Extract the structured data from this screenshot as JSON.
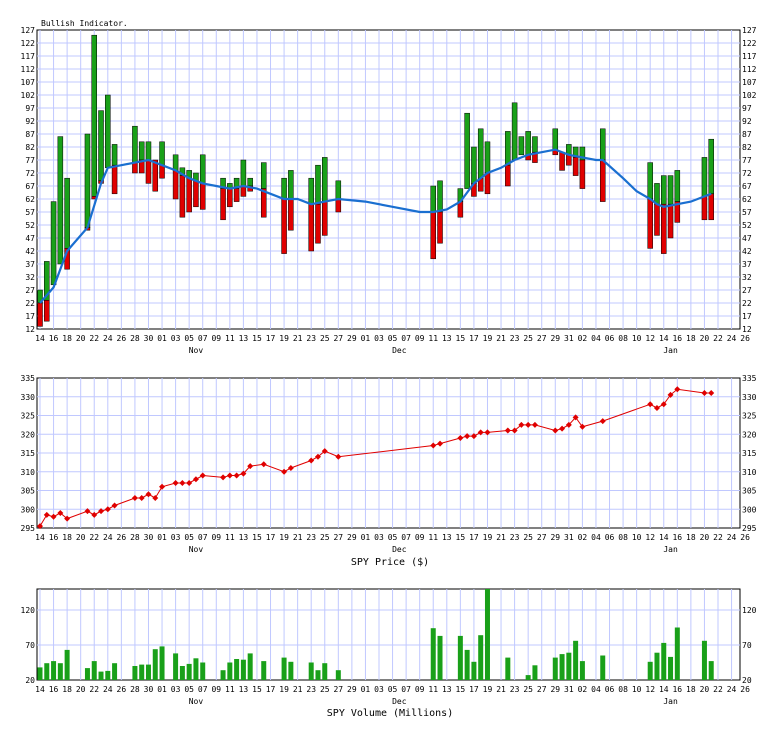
{
  "chart_data": [
    {
      "type": "bar",
      "title": "Bullish Indicator.",
      "ylim": [
        12,
        127
      ],
      "yticks": [
        12,
        17,
        22,
        27,
        32,
        37,
        42,
        47,
        52,
        57,
        62,
        67,
        72,
        77,
        82,
        87,
        92,
        97,
        102,
        107,
        112,
        117,
        122,
        127
      ],
      "xtick_labels": [
        "14",
        "16",
        "18",
        "20",
        "22",
        "24",
        "26",
        "28",
        "30",
        "01",
        "03",
        "05",
        "07",
        "09",
        "11",
        "13",
        "15",
        "17",
        "19",
        "21",
        "23",
        "25",
        "27",
        "29",
        "01",
        "03",
        "05",
        "07",
        "09",
        "11",
        "13",
        "15",
        "17",
        "19",
        "21",
        "23",
        "25",
        "27",
        "29",
        "31",
        "02",
        "04",
        "06",
        "08",
        "10",
        "12",
        "14",
        "16",
        "18",
        "20",
        "22",
        "24",
        "26"
      ],
      "month_labels": [
        {
          "text": "Nov",
          "index": 11.5
        },
        {
          "text": "Dec",
          "index": 26.5
        },
        {
          "text": "Jan",
          "index": 46.5
        }
      ],
      "bars": [
        {
          "i": 0,
          "bull": [
            22,
            27
          ],
          "bear": [
            13,
            22
          ]
        },
        {
          "i": 0.5,
          "bull": [
            23,
            38
          ],
          "bear": [
            15,
            23
          ]
        },
        {
          "i": 1,
          "bull": [
            29,
            61
          ],
          "bear": [
            null,
            null
          ]
        },
        {
          "i": 1.5,
          "bull": [
            37,
            86
          ],
          "bear": [
            null,
            null
          ]
        },
        {
          "i": 2,
          "bull": [
            43,
            70
          ],
          "bear": [
            35,
            43
          ]
        },
        {
          "i": 3.5,
          "bull": [
            51,
            87
          ],
          "bear": [
            50,
            51
          ]
        },
        {
          "i": 4,
          "bull": [
            63,
            125
          ],
          "bear": [
            62,
            63
          ]
        },
        {
          "i": 4.5,
          "bull": [
            69,
            96
          ],
          "bear": [
            68,
            69
          ]
        },
        {
          "i": 5,
          "bull": [
            74,
            102
          ],
          "bear": [
            null,
            null
          ]
        },
        {
          "i": 5.5,
          "bull": [
            75,
            83
          ],
          "bear": [
            64,
            75
          ]
        },
        {
          "i": 7,
          "bull": [
            76,
            90
          ],
          "bear": [
            72,
            76
          ]
        },
        {
          "i": 7.5,
          "bull": [
            77,
            84
          ],
          "bear": [
            72,
            77
          ]
        },
        {
          "i": 8,
          "bull": [
            77,
            84
          ],
          "bear": [
            68,
            77
          ]
        },
        {
          "i": 8.5,
          "bull": [
            77,
            77
          ],
          "bear": [
            65,
            77
          ]
        },
        {
          "i": 9,
          "bull": [
            75,
            84
          ],
          "bear": [
            70,
            75
          ]
        },
        {
          "i": 10,
          "bull": [
            73,
            79
          ],
          "bear": [
            62,
            73
          ]
        },
        {
          "i": 10.5,
          "bull": [
            71,
            74
          ],
          "bear": [
            55,
            71
          ]
        },
        {
          "i": 11,
          "bull": [
            70,
            73
          ],
          "bear": [
            57,
            70
          ]
        },
        {
          "i": 11.5,
          "bull": [
            69,
            72
          ],
          "bear": [
            59,
            69
          ]
        },
        {
          "i": 12,
          "bull": [
            68,
            79
          ],
          "bear": [
            58,
            68
          ]
        },
        {
          "i": 13.5,
          "bull": [
            66,
            70
          ],
          "bear": [
            54,
            66
          ]
        },
        {
          "i": 14,
          "bull": [
            66,
            68
          ],
          "bear": [
            59,
            66
          ]
        },
        {
          "i": 14.5,
          "bull": [
            66,
            70
          ],
          "bear": [
            61,
            66
          ]
        },
        {
          "i": 15,
          "bull": [
            67,
            77
          ],
          "bear": [
            63,
            67
          ]
        },
        {
          "i": 15.5,
          "bull": [
            67,
            70
          ],
          "bear": [
            65,
            67
          ]
        },
        {
          "i": 16.5,
          "bull": [
            66,
            76
          ],
          "bear": [
            55,
            66
          ]
        },
        {
          "i": 18,
          "bull": [
            62,
            70
          ],
          "bear": [
            41,
            62
          ]
        },
        {
          "i": 18.5,
          "bull": [
            62,
            73
          ],
          "bear": [
            50,
            62
          ]
        },
        {
          "i": 20,
          "bull": [
            60,
            70
          ],
          "bear": [
            42,
            60
          ]
        },
        {
          "i": 20.5,
          "bull": [
            60,
            75
          ],
          "bear": [
            45,
            60
          ]
        },
        {
          "i": 21,
          "bull": [
            61,
            78
          ],
          "bear": [
            48,
            61
          ]
        },
        {
          "i": 22,
          "bull": [
            62,
            69
          ],
          "bear": [
            57,
            62
          ]
        },
        {
          "i": 29,
          "bull": [
            57,
            67
          ],
          "bear": [
            39,
            57
          ]
        },
        {
          "i": 29.5,
          "bull": [
            57,
            69
          ],
          "bear": [
            45,
            57
          ]
        },
        {
          "i": 31,
          "bull": [
            61,
            66
          ],
          "bear": [
            55,
            61
          ]
        },
        {
          "i": 31.5,
          "bull": [
            66,
            95
          ],
          "bear": [
            null,
            null
          ]
        },
        {
          "i": 32,
          "bull": [
            68,
            82
          ],
          "bear": [
            63,
            68
          ]
        },
        {
          "i": 32.5,
          "bull": [
            70,
            89
          ],
          "bear": [
            65,
            70
          ]
        },
        {
          "i": 33,
          "bull": [
            72,
            84
          ],
          "bear": [
            64,
            72
          ]
        },
        {
          "i": 34.5,
          "bull": [
            75,
            88
          ],
          "bear": [
            67,
            75
          ]
        },
        {
          "i": 35,
          "bull": [
            77,
            99
          ],
          "bear": [
            null,
            null
          ]
        },
        {
          "i": 35.5,
          "bull": [
            79,
            86
          ],
          "bear": [
            null,
            null
          ]
        },
        {
          "i": 36,
          "bull": [
            79,
            88
          ],
          "bear": [
            77,
            79
          ]
        },
        {
          "i": 36.5,
          "bull": [
            80,
            86
          ],
          "bear": [
            76,
            80
          ]
        },
        {
          "i": 38,
          "bull": [
            81,
            89
          ],
          "bear": [
            79,
            81
          ]
        },
        {
          "i": 38.5,
          "bull": [
            80,
            80
          ],
          "bear": [
            73,
            80
          ]
        },
        {
          "i": 39,
          "bull": [
            79,
            83
          ],
          "bear": [
            75,
            79
          ]
        },
        {
          "i": 39.5,
          "bull": [
            78,
            82
          ],
          "bear": [
            71,
            78
          ]
        },
        {
          "i": 40,
          "bull": [
            77,
            82
          ],
          "bear": [
            66,
            77
          ]
        },
        {
          "i": 41.5,
          "bull": [
            77,
            89
          ],
          "bear": [
            61,
            77
          ]
        },
        {
          "i": 45,
          "bull": [
            62,
            76
          ],
          "bear": [
            43,
            62
          ]
        },
        {
          "i": 45.5,
          "bull": [
            60,
            68
          ],
          "bear": [
            48,
            60
          ]
        },
        {
          "i": 46,
          "bull": [
            60,
            71
          ],
          "bear": [
            41,
            60
          ]
        },
        {
          "i": 46.5,
          "bull": [
            60,
            71
          ],
          "bear": [
            47,
            60
          ]
        },
        {
          "i": 47,
          "bull": [
            61,
            73
          ],
          "bear": [
            53,
            61
          ]
        },
        {
          "i": 49,
          "bull": [
            63,
            78
          ],
          "bear": [
            54,
            63
          ]
        },
        {
          "i": 49.5,
          "bull": [
            64,
            85
          ],
          "bear": [
            54,
            64
          ]
        }
      ],
      "trend_line": [
        [
          0,
          22
        ],
        [
          1,
          28
        ],
        [
          2,
          42
        ],
        [
          3.5,
          51
        ],
        [
          4.5,
          68
        ],
        [
          5,
          74
        ],
        [
          6,
          75
        ],
        [
          7,
          76
        ],
        [
          8,
          77
        ],
        [
          9,
          75
        ],
        [
          10,
          73
        ],
        [
          11,
          70
        ],
        [
          12,
          68
        ],
        [
          13,
          67
        ],
        [
          14,
          66
        ],
        [
          15,
          67
        ],
        [
          16,
          66
        ],
        [
          17,
          64
        ],
        [
          18,
          62
        ],
        [
          19,
          62
        ],
        [
          20,
          60
        ],
        [
          21,
          61
        ],
        [
          22,
          62
        ],
        [
          24,
          61
        ],
        [
          26,
          59
        ],
        [
          28,
          57
        ],
        [
          29,
          57
        ],
        [
          30,
          58
        ],
        [
          31,
          61
        ],
        [
          32,
          68
        ],
        [
          33,
          72
        ],
        [
          34,
          74
        ],
        [
          35,
          77
        ],
        [
          36,
          79
        ],
        [
          37,
          80
        ],
        [
          38,
          81
        ],
        [
          39,
          79
        ],
        [
          40,
          78
        ],
        [
          41,
          77
        ],
        [
          41.5,
          77
        ],
        [
          43,
          70
        ],
        [
          44,
          65
        ],
        [
          45,
          62
        ],
        [
          45.5,
          60
        ],
        [
          46,
          59
        ],
        [
          47,
          60
        ],
        [
          48,
          61
        ],
        [
          49,
          63
        ],
        [
          49.5,
          64
        ]
      ],
      "colors": {
        "bull": "#19a019",
        "bear": "#e00000",
        "trend": "#1a6fd0",
        "grid": "#c0c8ff"
      }
    },
    {
      "type": "line",
      "xlabel": "SPY Price ($)",
      "ylim": [
        295,
        335
      ],
      "yticks": [
        295,
        300,
        305,
        310,
        315,
        320,
        325,
        330,
        335
      ],
      "x": [
        0,
        0.5,
        1,
        1.5,
        2,
        3.5,
        4,
        4.5,
        5,
        5.5,
        7,
        7.5,
        8,
        8.5,
        9,
        10,
        10.5,
        11,
        11.5,
        12,
        13.5,
        14,
        14.5,
        15,
        15.5,
        16.5,
        18,
        18.5,
        20,
        20.5,
        21,
        22,
        29,
        29.5,
        31,
        31.5,
        32,
        32.5,
        33,
        34.5,
        35,
        35.5,
        36,
        36.5,
        38,
        38.5,
        39,
        39.5,
        40,
        41.5,
        45,
        45.5,
        46,
        46.5,
        47,
        49,
        49.5
      ],
      "values": [
        295.5,
        298.5,
        298.0,
        299.0,
        297.5,
        299.5,
        298.5,
        299.5,
        300.0,
        301.0,
        303.0,
        303.0,
        304.0,
        303.0,
        306.0,
        307.0,
        307.0,
        307.0,
        308.0,
        309.0,
        308.5,
        309.0,
        309.0,
        309.5,
        311.5,
        312.0,
        310.0,
        311.0,
        313.0,
        314.0,
        315.5,
        314.0,
        317.0,
        317.5,
        319.0,
        319.5,
        319.5,
        320.5,
        320.5,
        321.0,
        321.0,
        322.5,
        322.5,
        322.5,
        321.0,
        321.5,
        322.5,
        324.5,
        322.0,
        323.5,
        328.0,
        327.0,
        328.0,
        330.5,
        332.0,
        331.0,
        331.0
      ],
      "colors": {
        "line": "#e00000",
        "grid": "#c0c8ff"
      }
    },
    {
      "type": "bar",
      "xlabel": "SPY Volume (Millions)",
      "ylim": [
        20,
        150
      ],
      "yticks": [
        20,
        70,
        120
      ],
      "x": [
        0,
        0.5,
        1,
        1.5,
        2,
        3.5,
        4,
        4.5,
        5,
        5.5,
        7,
        7.5,
        8,
        8.5,
        9,
        10,
        10.5,
        11,
        11.5,
        12,
        13.5,
        14,
        14.5,
        15,
        15.5,
        16.5,
        18,
        18.5,
        20,
        20.5,
        21,
        22,
        29,
        29.5,
        31,
        31.5,
        32,
        32.5,
        33,
        34.5,
        35,
        35.5,
        36,
        36.5,
        38,
        38.5,
        39,
        39.5,
        40,
        41.5,
        45,
        45.5,
        46,
        46.5,
        47,
        49,
        49.5
      ],
      "values": [
        38,
        44,
        47,
        44,
        63,
        37,
        47,
        32,
        33,
        44,
        40,
        42,
        42,
        64,
        68,
        58,
        40,
        43,
        51,
        45,
        34,
        45,
        50,
        49,
        58,
        47,
        52,
        46,
        45,
        34,
        44,
        34,
        94,
        83,
        83,
        63,
        46,
        84,
        156,
        52,
        14,
        14,
        27,
        41,
        52,
        57,
        59,
        76,
        47,
        55,
        46,
        59,
        73,
        53,
        95,
        76,
        47
      ],
      "colors": {
        "bar": "#19a019",
        "grid": "#c0c8ff"
      }
    }
  ]
}
